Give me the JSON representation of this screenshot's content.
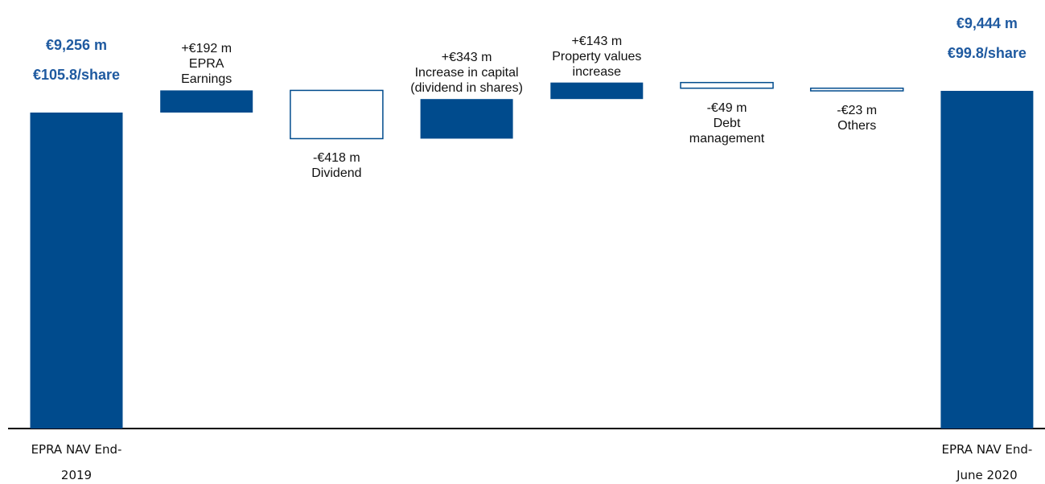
{
  "chart_data": {
    "type": "waterfall",
    "categories": [
      "EPRA NAV End-2019",
      "EPRA Earnings",
      "Dividend",
      "Increase in capital (dividend in shares)",
      "Property values increase",
      "Debt management",
      "Others",
      "EPRA NAV End-June 2020"
    ],
    "measure": [
      "absolute",
      "relative",
      "relative",
      "relative",
      "relative",
      "relative",
      "relative",
      "absolute"
    ],
    "values": [
      9256,
      192,
      -418,
      343,
      143,
      -49,
      -23,
      9444
    ],
    "value_labels": [
      "€9,256 m",
      "+€192 m",
      "-€418 m",
      "+€343 m",
      "+€143 m",
      "-€49 m",
      "-€23 m",
      "€9,444 m"
    ],
    "per_share_labels": [
      "€105.8/share",
      null,
      null,
      null,
      null,
      null,
      null,
      "€99.8/share"
    ],
    "color": "#004b8d",
    "decrease_fill": "#ffffff",
    "ylim": [
      6519,
      10231
    ]
  }
}
